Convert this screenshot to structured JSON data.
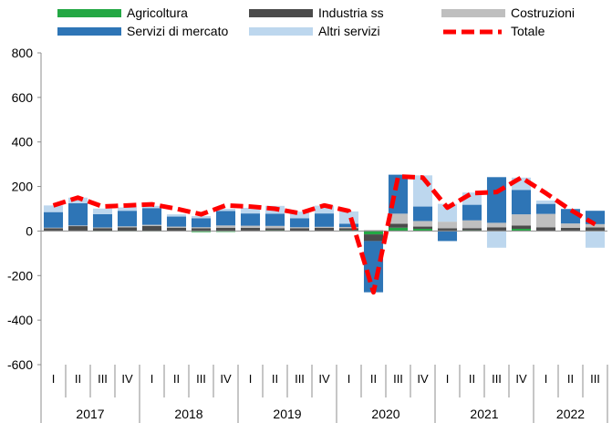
{
  "chart_data": {
    "type": "bar",
    "stacked": true,
    "ylim": [
      -600,
      800
    ],
    "y_ticks": [
      800,
      600,
      400,
      200,
      0,
      -200,
      -400,
      -600
    ],
    "grid": false,
    "legend_position": "top",
    "quarter_labels": [
      "I",
      "II",
      "III",
      "IV",
      "I",
      "II",
      "III",
      "IV",
      "I",
      "II",
      "III",
      "IV",
      "I",
      "II",
      "III",
      "IV",
      "I",
      "II",
      "III",
      "IV",
      "I",
      "II",
      "III"
    ],
    "years": [
      {
        "label": "2017",
        "count": 4
      },
      {
        "label": "2018",
        "count": 4
      },
      {
        "label": "2019",
        "count": 4
      },
      {
        "label": "2020",
        "count": 4
      },
      {
        "label": "2021",
        "count": 4
      },
      {
        "label": "2022",
        "count": 3
      }
    ],
    "series": [
      {
        "name": "Agricoltura",
        "color": "#23a844",
        "kind": "bar",
        "values": [
          2,
          2,
          1,
          1,
          1,
          0,
          -5,
          -4,
          2,
          3,
          2,
          2,
          3,
          -15,
          15,
          10,
          2,
          3,
          2,
          10,
          2,
          2,
          1
        ]
      },
      {
        "name": "Industria ss",
        "color": "#4b4b4b",
        "kind": "bar",
        "values": [
          10,
          20,
          12,
          15,
          22,
          15,
          12,
          15,
          12,
          10,
          10,
          12,
          10,
          -30,
          18,
          10,
          10,
          10,
          15,
          15,
          15,
          12,
          15
        ]
      },
      {
        "name": "Costruzioni",
        "color": "#bfbfbf",
        "kind": "bar",
        "values": [
          3,
          3,
          3,
          5,
          5,
          5,
          5,
          10,
          10,
          10,
          5,
          5,
          5,
          5,
          45,
          25,
          30,
          35,
          20,
          50,
          60,
          20,
          15
        ]
      },
      {
        "name": "Servizi di mercato",
        "color": "#2e75b6",
        "kind": "bar",
        "values": [
          70,
          100,
          60,
          70,
          75,
          45,
          40,
          65,
          55,
          55,
          40,
          60,
          15,
          -230,
          175,
          65,
          -45,
          70,
          205,
          110,
          45,
          65,
          60
        ]
      },
      {
        "name": "Altri servizi",
        "color": "#bdd7ee",
        "kind": "bar",
        "values": [
          30,
          25,
          25,
          15,
          10,
          10,
          10,
          10,
          25,
          35,
          30,
          35,
          55,
          0,
          0,
          140,
          80,
          55,
          -75,
          55,
          15,
          0,
          -75
        ]
      },
      {
        "name": "Totale",
        "color": "#ff0000",
        "kind": "line",
        "values": [
          115,
          150,
          110,
          115,
          120,
          100,
          75,
          115,
          110,
          100,
          80,
          115,
          90,
          -275,
          245,
          240,
          105,
          170,
          175,
          240,
          170,
          95,
          30
        ]
      }
    ]
  }
}
